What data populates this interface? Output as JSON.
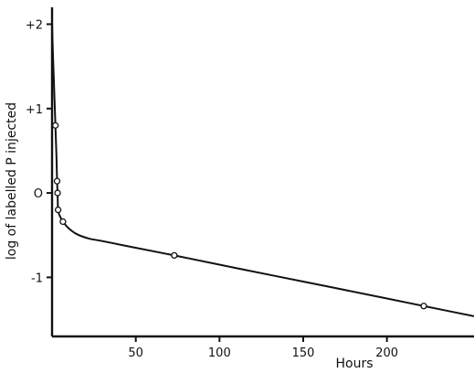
{
  "chart_data": {
    "type": "line",
    "title": "",
    "xlabel": "Hours",
    "ylabel": "log of labelled P injected",
    "xlim": [
      0,
      252
    ],
    "ylim": [
      -1.7,
      2.2
    ],
    "x_ticks": [
      50,
      100,
      150,
      200
    ],
    "x_tick_labels": [
      "50",
      "100",
      "150",
      "200"
    ],
    "y_ticks": [
      2,
      1,
      0,
      -1
    ],
    "y_tick_labels": [
      "+2",
      "+1",
      "O",
      "-1"
    ],
    "grid": false,
    "legend": "none",
    "series": [
      {
        "points": [
          {
            "x": 2,
            "y": 0.8
          },
          {
            "x": 3,
            "y": 0.14
          },
          {
            "x": 3.3,
            "y": 0.0
          },
          {
            "x": 3.6,
            "y": -0.2
          },
          {
            "x": 6.5,
            "y": -0.34
          },
          {
            "x": 73,
            "y": -0.74
          },
          {
            "x": 222,
            "y": -1.34
          }
        ],
        "curve": [
          {
            "x": 0,
            "y": 2.0
          },
          {
            "x": 0.6,
            "y": 1.6
          },
          {
            "x": 1.3,
            "y": 1.2
          },
          {
            "x": 2,
            "y": 0.8
          },
          {
            "x": 2.6,
            "y": 0.45
          },
          {
            "x": 3,
            "y": 0.14
          },
          {
            "x": 3.3,
            "y": 0.0
          },
          {
            "x": 3.6,
            "y": -0.2
          },
          {
            "x": 4.6,
            "y": -0.27
          },
          {
            "x": 6.5,
            "y": -0.34
          },
          {
            "x": 10,
            "y": -0.42
          },
          {
            "x": 15,
            "y": -0.49
          },
          {
            "x": 22,
            "y": -0.54
          },
          {
            "x": 30,
            "y": -0.57
          },
          {
            "x": 45,
            "y": -0.63
          },
          {
            "x": 73,
            "y": -0.74
          },
          {
            "x": 100,
            "y": -0.85
          },
          {
            "x": 150,
            "y": -1.05
          },
          {
            "x": 200,
            "y": -1.25
          },
          {
            "x": 222,
            "y": -1.34
          },
          {
            "x": 252,
            "y": -1.46
          }
        ]
      }
    ]
  },
  "colors": {
    "ink": "#111111",
    "background": "#ffffff"
  }
}
